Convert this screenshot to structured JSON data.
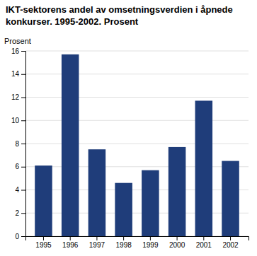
{
  "chart_data": {
    "type": "bar",
    "title": "IKT-sektorens andel av omsetningsverdien i åpnede\nkonkurser. 1995-2002. Prosent",
    "ylabel": "Prosent",
    "categories": [
      "1995",
      "1996",
      "1997",
      "1998",
      "1999",
      "2000",
      "2001",
      "2002"
    ],
    "values": [
      6.1,
      15.7,
      7.5,
      4.6,
      5.7,
      7.7,
      11.7,
      6.5
    ],
    "color": "#1f3d7a",
    "ylim": [
      0,
      16
    ],
    "yticks": [
      0,
      2,
      4,
      6,
      8,
      10,
      12,
      14,
      16
    ],
    "grid": true
  }
}
